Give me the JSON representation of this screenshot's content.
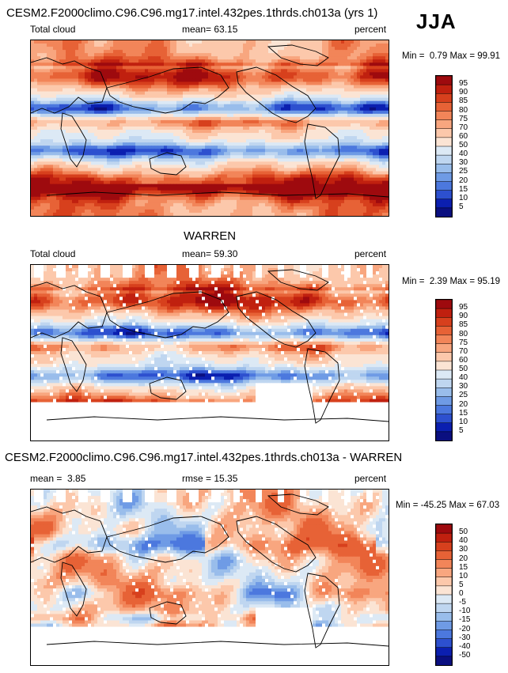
{
  "season": "JJA",
  "chart_data": [
    {
      "type": "heatmap",
      "title": "CESM2.F2000climo.C96.C96.mg17.intel.432pes.1thrds.ch013a (yrs 1)",
      "variable": "Total cloud",
      "stat_label": "mean=",
      "stat_value": "63.15",
      "units": "percent",
      "min_label": "Min =",
      "min": "0.79",
      "max_label": "Max =",
      "max": "99.91",
      "colorbar_levels": [
        "95",
        "90",
        "85",
        "80",
        "75",
        "70",
        "60",
        "50",
        "40",
        "30",
        "25",
        "20",
        "15",
        "10",
        "5"
      ],
      "colors": [
        "#9e0a0e",
        "#c0200f",
        "#d7401d",
        "#e76236",
        "#f28559",
        "#f8a67f",
        "#fcc8ab",
        "#fbe4d4",
        "#dce9f5",
        "#bfd6f0",
        "#99bdeb",
        "#6f9be5",
        "#4c78de",
        "#2d50cf",
        "#0b1fb0",
        "#0a0f80"
      ]
    },
    {
      "type": "heatmap",
      "title": "WARREN",
      "variable": "Total cloud",
      "stat_label": "mean=",
      "stat_value": "59.30",
      "units": "percent",
      "min_label": "Min =",
      "min": "2.39",
      "max_label": "Max =",
      "max": "95.19",
      "colorbar_levels": [
        "95",
        "90",
        "85",
        "80",
        "75",
        "70",
        "60",
        "50",
        "40",
        "30",
        "25",
        "20",
        "15",
        "10",
        "5"
      ],
      "colors": [
        "#9e0a0e",
        "#c0200f",
        "#d7401d",
        "#e76236",
        "#f28559",
        "#f8a67f",
        "#fcc8ab",
        "#fbe4d4",
        "#dce9f5",
        "#bfd6f0",
        "#99bdeb",
        "#6f9be5",
        "#4c78de",
        "#2d50cf",
        "#0b1fb0",
        "#0a0f80"
      ]
    },
    {
      "type": "heatmap",
      "title": "CESM2.F2000climo.C96.C96.mg17.intel.432pes.1thrds.ch013a - WARREN",
      "variable": "",
      "stat_label": "mean =",
      "stat_value": "3.85",
      "rmse_label": "rmse =",
      "rmse_value": "15.35",
      "units": "percent",
      "min_label": "Min =",
      "min": "-45.25",
      "max_label": "Max =",
      "max": "67.03",
      "colorbar_levels": [
        "50",
        "40",
        "30",
        "20",
        "15",
        "10",
        "5",
        "0",
        "-5",
        "-10",
        "-15",
        "-20",
        "-30",
        "-40",
        "-50"
      ],
      "colors": [
        "#9e0a0e",
        "#c0200f",
        "#d7401d",
        "#e76236",
        "#f28559",
        "#f8a67f",
        "#fcc8ab",
        "#fbe4d4",
        "#dce9f5",
        "#bfd6f0",
        "#99bdeb",
        "#6f9be5",
        "#4c78de",
        "#2d50cf",
        "#0b1fb0",
        "#0a0f80"
      ]
    }
  ]
}
